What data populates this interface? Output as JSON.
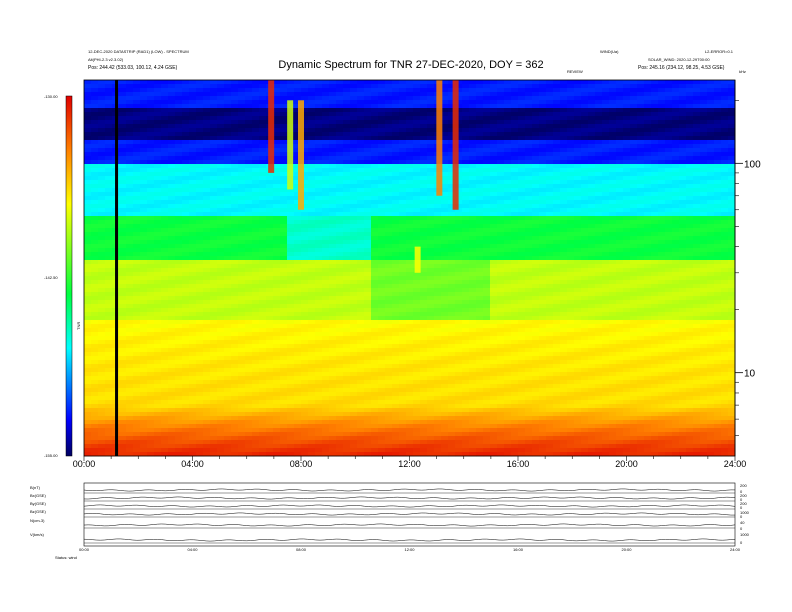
{
  "chart_data": {
    "type": "heatmap",
    "title": "Dynamic Spectrum for TNR 27-DEC-2020, DOY = 362",
    "header": {
      "left_line1": "12-DEC-2020 DATASTRIP (RAD1) (LOW) - SPECTRUM",
      "left_line2": "Alt(PHI-2.3 v2.3.02)",
      "left_line3": "Pos: 244.42 (533.03, 100.12, 4.24 GSE)",
      "right_line1": "WIND(Ua)",
      "right_line2": "L2-ERROR=0.1",
      "right_line3": "SOLAR_WIND: 2020-12-29T00:00",
      "right_line4": "Pos: 245.16 (234.12, 98.25, 4.53 GSE)",
      "mid_marker": "REVIEW",
      "corner_right": "kHz"
    },
    "colorbar": {
      "tick_labels": [
        "-130.00",
        "-142.50",
        "-155.00"
      ],
      "unit_label": "TNR",
      "min": -155.0,
      "max": -130.0
    },
    "x_ticks": [
      "00:00",
      "04:00",
      "08:00",
      "12:00",
      "16:00",
      "20:00",
      "24:00"
    ],
    "x_range": [
      0,
      24
    ],
    "y_scale": "log",
    "y_ticks": [
      "100",
      "10"
    ],
    "y_tick_values": [
      100,
      10
    ],
    "y_range": [
      4,
      250
    ],
    "marker_hour": 1.2,
    "events": [
      {
        "hour": 6.9,
        "top_khz": 250,
        "bottom_khz": 90,
        "intensity": 0.95
      },
      {
        "hour": 7.6,
        "top_khz": 200,
        "bottom_khz": 75,
        "intensity": 0.65
      },
      {
        "hour": 8.0,
        "top_khz": 200,
        "bottom_khz": 60,
        "intensity": 0.8
      },
      {
        "hour": 13.1,
        "top_khz": 250,
        "bottom_khz": 70,
        "intensity": 0.85
      },
      {
        "hour": 13.7,
        "top_khz": 250,
        "bottom_khz": 60,
        "intensity": 0.95
      },
      {
        "hour": 12.3,
        "top_khz": 40,
        "bottom_khz": 30,
        "intensity": 0.7
      }
    ],
    "panels": [
      {
        "label": "B(nT)",
        "right_ticks": [
          "200",
          "0"
        ]
      },
      {
        "label": "Bx(GSE)",
        "right_ticks": [
          "200",
          "0"
        ]
      },
      {
        "label": "By(GSE)",
        "right_ticks": [
          "200",
          "0"
        ]
      },
      {
        "label": "Bz(GSE)",
        "right_ticks": [
          "1000",
          "0"
        ]
      },
      {
        "label": "N(cm-3)",
        "right_ticks": [
          "40",
          "0"
        ]
      },
      {
        "label": "V(km/s)",
        "right_ticks": [
          "1000",
          "0"
        ]
      }
    ],
    "panel_x_ticks": [
      "00:00",
      "04:00",
      "08:00",
      "12:00",
      "16:00",
      "20:00",
      "24:00"
    ],
    "footer": "Status: wind"
  }
}
